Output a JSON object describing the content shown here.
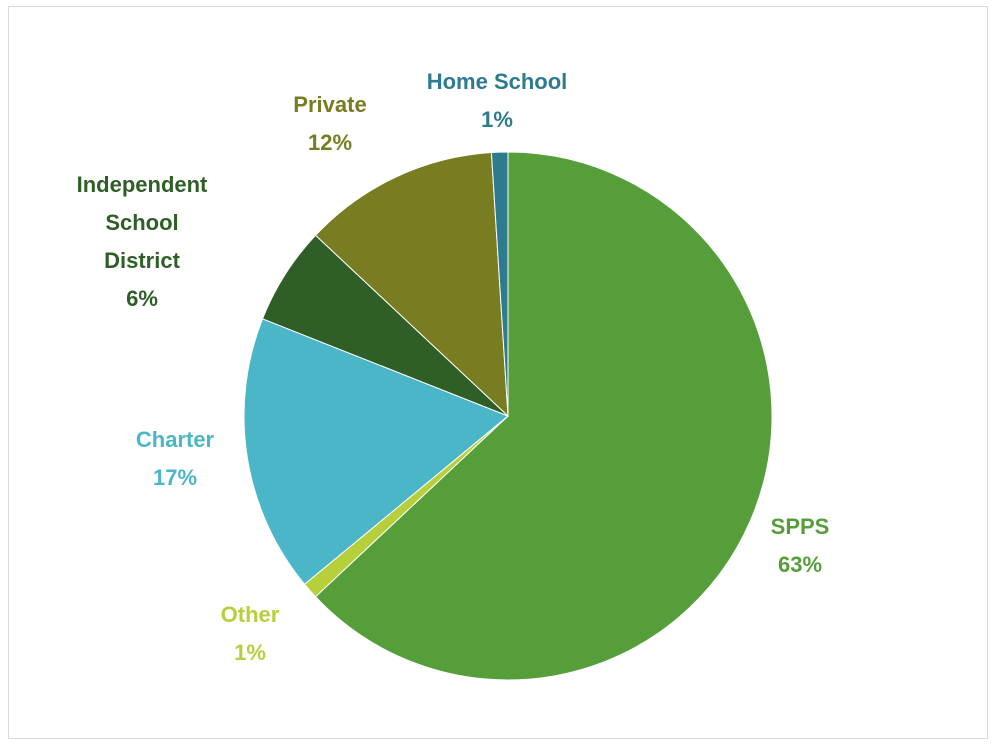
{
  "chart_data": {
    "type": "pie",
    "categories": [
      "SPPS",
      "Other",
      "Charter",
      "Independent School District",
      "Private",
      "Home School"
    ],
    "values": [
      63,
      1,
      17,
      6,
      12,
      1
    ],
    "value_labels": [
      "63%",
      "1%",
      "17%",
      "6%",
      "12%",
      "1%"
    ],
    "colors": [
      "#559e3a",
      "#b8cf3c",
      "#4bb6c7",
      "#2f5f26",
      "#787d21",
      "#2e7a8f"
    ]
  }
}
